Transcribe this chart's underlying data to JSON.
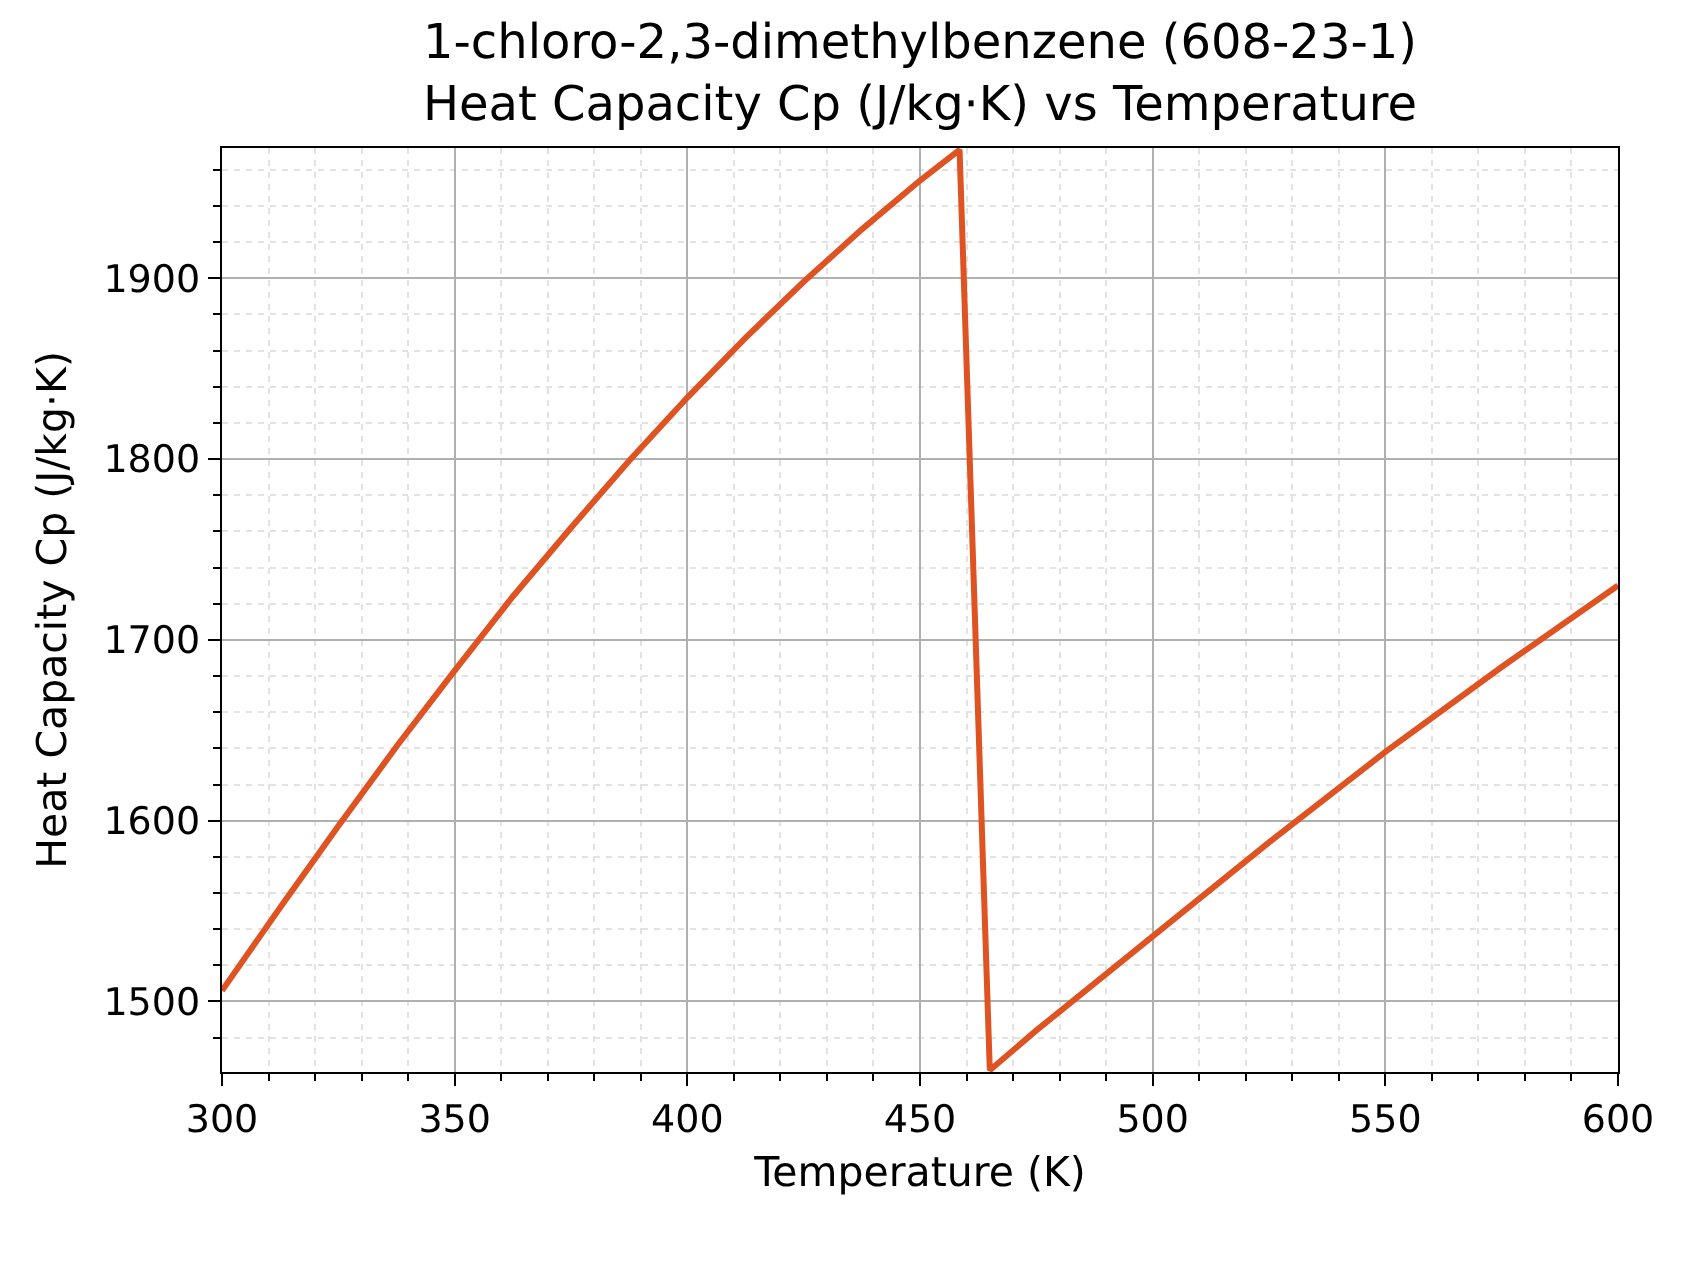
{
  "chart_data": {
    "type": "line",
    "title": "1-chloro-2,3-dimethylbenzene (608-23-1)\nHeat Capacity Cp (J/kg·K) vs Temperature",
    "xlabel": "Temperature (K)",
    "ylabel": "Heat Capacity Cp (J/kg·K)",
    "x": [
      300,
      312.5,
      325,
      337.5,
      350,
      362.5,
      375,
      387.5,
      400,
      412.5,
      425,
      437.5,
      450,
      458.5,
      465,
      475,
      500,
      525,
      550,
      575,
      600
    ],
    "series": [
      {
        "color": "#df5222",
        "values": [
          1506,
          1552,
          1597,
          1641,
          1683,
          1724,
          1762,
          1799,
          1834,
          1867,
          1898,
          1927,
          1954,
          1971,
          1462,
          1484,
          1536,
          1588,
          1638,
          1685,
          1730
        ]
      }
    ],
    "xlim": [
      300,
      600
    ],
    "xticks": [
      300,
      350,
      400,
      450,
      500,
      550,
      600
    ],
    "ylim": [
      1461,
      1972
    ],
    "yticks": [
      1500,
      1600,
      1700,
      1800,
      1900
    ],
    "grid": true
  }
}
